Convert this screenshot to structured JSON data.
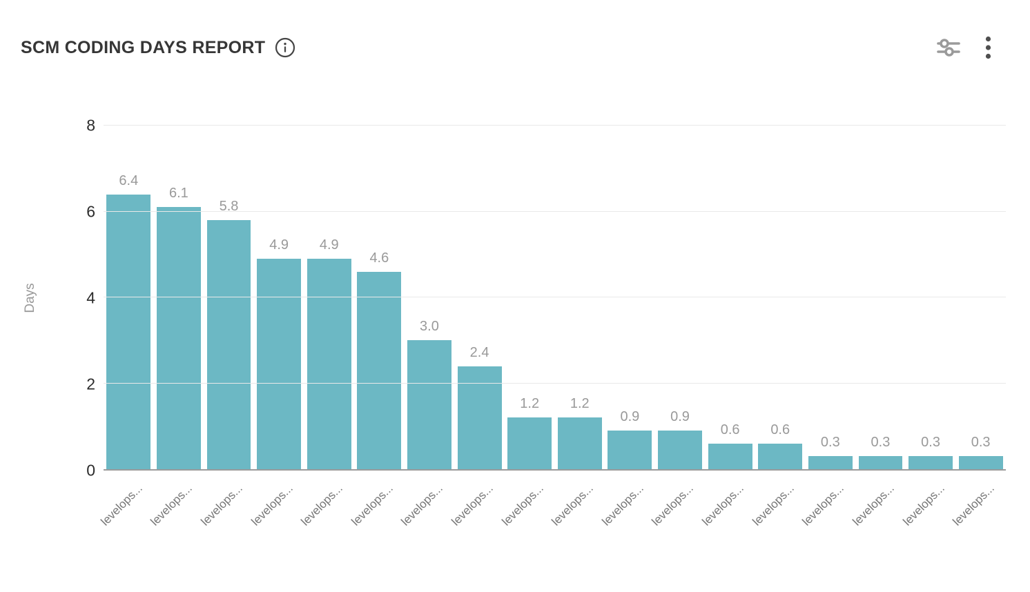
{
  "header": {
    "title": "SCM CODING DAYS REPORT",
    "icons": {
      "info": "info-icon",
      "filter": "filter-sliders-icon",
      "menu": "kebab-menu-icon"
    }
  },
  "colors": {
    "bar": "#6cb8c4",
    "value_label": "#999999",
    "y_tick_label": "#2b2b2b",
    "x_tick_label": "#767676",
    "axis_line": "#9b9b9b",
    "gridline": "#e9e9e9",
    "title_text": "#363636",
    "icon_gray": "#9a9a9a",
    "icon_dark": "#4f4f4f"
  },
  "chart_data": {
    "type": "bar",
    "title": "SCM CODING DAYS REPORT",
    "xlabel": "",
    "ylabel": "Days",
    "ylim": [
      0,
      8
    ],
    "yticks": [
      0,
      2,
      4,
      6,
      8
    ],
    "grid": true,
    "legend": false,
    "bar_color": "#6cb8c4",
    "categories": [
      "levelops...",
      "levelops...",
      "levelops...",
      "levelops...",
      "levelops...",
      "levelops...",
      "levelops...",
      "levelops...",
      "levelops...",
      "levelops...",
      "levelops...",
      "levelops...",
      "levelops...",
      "levelops...",
      "levelops...",
      "levelops...",
      "levelops...",
      "levelops..."
    ],
    "values": [
      6.4,
      6.1,
      5.8,
      4.9,
      4.9,
      4.6,
      3.0,
      2.4,
      1.2,
      1.2,
      0.9,
      0.9,
      0.6,
      0.6,
      0.3,
      0.3,
      0.3,
      0.3
    ],
    "value_labels": [
      "6.4",
      "6.1",
      "5.8",
      "4.9",
      "4.9",
      "4.6",
      "3.0",
      "2.4",
      "1.2",
      "1.2",
      "0.9",
      "0.9",
      "0.6",
      "0.6",
      "0.3",
      "0.3",
      "0.3",
      "0.3"
    ]
  }
}
